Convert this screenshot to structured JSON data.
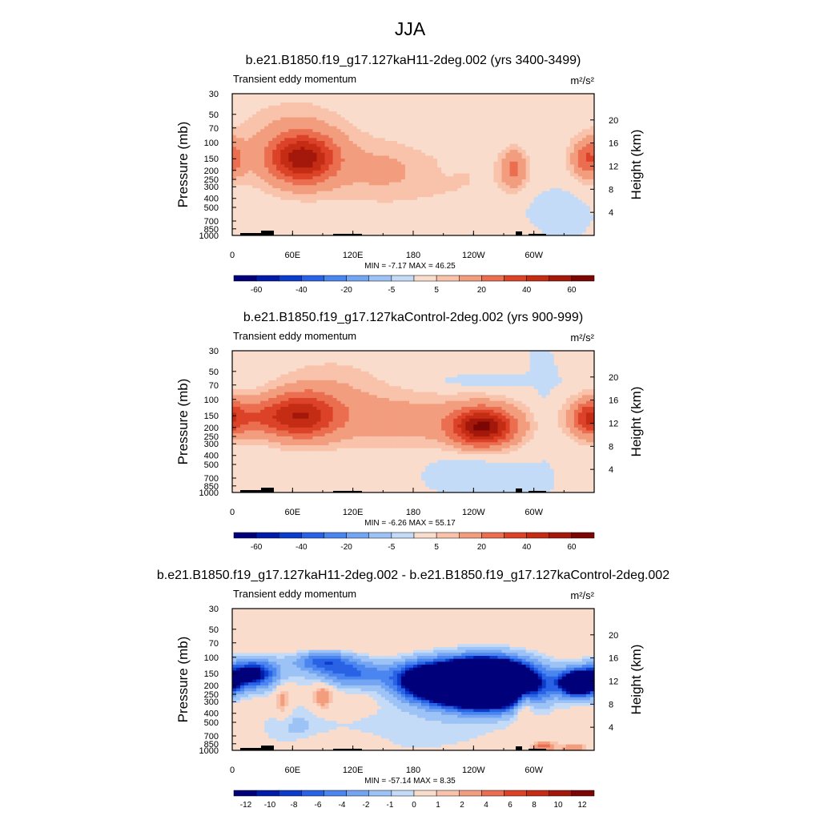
{
  "figure_title": "JJA",
  "chart_data": [
    {
      "type": "heatmap",
      "title": "b.e21.B1850.f19_g17.127kaH11-2deg.002 (yrs 3400-3499)",
      "subtitle": "Transient eddy momentum",
      "units": "m²/s²",
      "xlabel": "",
      "ylabel": "Pressure (mb)",
      "ylabel_right": "Height (km)",
      "x_ticks": [
        "0",
        "60E",
        "120E",
        "180",
        "120W",
        "60W"
      ],
      "y_ticks": [
        "30",
        "50",
        "70",
        "100",
        "150",
        "200",
        "250",
        "300",
        "400",
        "500",
        "700",
        "850",
        "1000"
      ],
      "y_ticks_right": [
        "20",
        "16",
        "12",
        "8",
        "4"
      ],
      "x_range": [
        0,
        360
      ],
      "y_range_mb": [
        1000,
        30
      ],
      "y_scale": "log",
      "min_max_text": "MIN = -7.17  MAX = 46.25",
      "min": -7.17,
      "max": 46.25,
      "colorbar_labels": [
        "-60",
        "-40",
        "-20",
        "-5",
        "5",
        "20",
        "40",
        "60"
      ],
      "colorbar_levels": [
        -70,
        -60,
        -50,
        -40,
        -30,
        -20,
        -10,
        -5,
        0,
        5,
        10,
        20,
        30,
        40,
        50,
        60,
        70
      ],
      "features": [
        {
          "lon": 70,
          "p": 150,
          "peak": 46,
          "lon_width": 32,
          "logp_width": 0.25
        },
        {
          "lon": 62,
          "p": 100,
          "peak": 12,
          "lon_width": 60,
          "logp_width": 0.45
        },
        {
          "lon": 280,
          "p": 190,
          "peak": 20,
          "lon_width": 12,
          "logp_width": 0.2
        },
        {
          "lon": 355,
          "p": 150,
          "peak": 28,
          "lon_width": 16,
          "logp_width": 0.2
        },
        {
          "lon": 180,
          "p": 250,
          "peak": 6,
          "lon_width": 130,
          "logp_width": 0.35
        },
        {
          "lon": 150,
          "p": 180,
          "peak": 6,
          "lon_width": 40,
          "logp_width": 0.3
        },
        {
          "lon": 215,
          "p": 170,
          "peak": -3,
          "lon_width": 8,
          "logp_width": 0.12
        },
        {
          "lon": 180,
          "p": 900,
          "peak": 3,
          "lon_width": 120,
          "logp_width": 0.15
        },
        {
          "lon": 320,
          "p": 500,
          "peak": -3,
          "lon_width": 30,
          "logp_width": 0.3
        }
      ]
    },
    {
      "type": "heatmap",
      "title": "b.e21.B1850.f19_g17.127kaControl-2deg.002 (yrs 900-999)",
      "subtitle": "Transient eddy momentum",
      "units": "m²/s²",
      "xlabel": "",
      "ylabel": "Pressure (mb)",
      "ylabel_right": "Height (km)",
      "x_ticks": [
        "0",
        "60E",
        "120E",
        "180",
        "120W",
        "60W"
      ],
      "y_ticks": [
        "30",
        "50",
        "70",
        "100",
        "150",
        "200",
        "250",
        "300",
        "400",
        "500",
        "700",
        "850",
        "1000"
      ],
      "y_ticks_right": [
        "20",
        "16",
        "12",
        "8",
        "4"
      ],
      "x_range": [
        0,
        360
      ],
      "y_range_mb": [
        1000,
        30
      ],
      "y_scale": "log",
      "min_max_text": "MIN = -6.26  MAX = 55.17",
      "min": -6.26,
      "max": 55.17,
      "colorbar_labels": [
        "-60",
        "-40",
        "-20",
        "-5",
        "5",
        "20",
        "40",
        "60"
      ],
      "colorbar_levels": [
        -70,
        -60,
        -50,
        -40,
        -30,
        -20,
        -10,
        -5,
        0,
        5,
        10,
        20,
        30,
        40,
        50,
        60,
        70
      ],
      "features": [
        {
          "lon": 70,
          "p": 150,
          "peak": 38,
          "lon_width": 34,
          "logp_width": 0.25
        },
        {
          "lon": 20,
          "p": 155,
          "peak": 22,
          "lon_width": 40,
          "logp_width": 0.2
        },
        {
          "lon": 250,
          "p": 200,
          "peak": 55,
          "lon_width": 30,
          "logp_width": 0.2
        },
        {
          "lon": 355,
          "p": 160,
          "peak": 28,
          "lon_width": 16,
          "logp_width": 0.2
        },
        {
          "lon": 180,
          "p": 170,
          "peak": 14,
          "lon_width": 110,
          "logp_width": 0.28
        },
        {
          "lon": 100,
          "p": 80,
          "peak": 8,
          "lon_width": 60,
          "logp_width": 0.4
        },
        {
          "lon": 310,
          "p": 150,
          "peak": -3,
          "lon_width": 14,
          "logp_width": 0.3
        },
        {
          "lon": 240,
          "p": 450,
          "peak": -3,
          "lon_width": 40,
          "logp_width": 0.15
        },
        {
          "lon": 250,
          "p": 65,
          "peak": -3,
          "lon_width": 50,
          "logp_width": 0.06
        }
      ]
    },
    {
      "type": "heatmap",
      "title": "b.e21.B1850.f19_g17.127kaH11-2deg.002 - b.e21.B1850.f19_g17.127kaControl-2deg.002",
      "subtitle": "Transient eddy momentum",
      "units": "m²/s²",
      "xlabel": "",
      "ylabel": "Pressure (mb)",
      "ylabel_right": "Height (km)",
      "x_ticks": [
        "0",
        "60E",
        "120E",
        "180",
        "120W",
        "60W"
      ],
      "y_ticks": [
        "30",
        "50",
        "70",
        "100",
        "150",
        "200",
        "250",
        "300",
        "400",
        "500",
        "700",
        "850",
        "1000"
      ],
      "y_ticks_right": [
        "20",
        "16",
        "12",
        "8",
        "4"
      ],
      "x_range": [
        0,
        360
      ],
      "y_range_mb": [
        1000,
        30
      ],
      "y_scale": "log",
      "min_max_text": "MIN = -57.14  MAX = 8.35",
      "min": -57.14,
      "max": 8.35,
      "colorbar_labels": [
        "-12",
        "-10",
        "-8",
        "-6",
        "-4",
        "-2",
        "-1",
        "0",
        "1",
        "2",
        "4",
        "6",
        "8",
        "10",
        "12"
      ],
      "colorbar_levels": [
        -14,
        -12,
        -11,
        -10,
        -9,
        -8,
        -6,
        -4,
        -2,
        -1,
        0,
        1,
        2,
        4,
        6,
        8,
        10,
        11,
        12,
        14
      ],
      "features": [
        {
          "lon": 250,
          "p": 190,
          "peak": -57,
          "lon_width": 45,
          "logp_width": 0.22
        },
        {
          "lon": 190,
          "p": 180,
          "peak": -14,
          "lon_width": 30,
          "logp_width": 0.2
        },
        {
          "lon": 20,
          "p": 150,
          "peak": -14,
          "lon_width": 25,
          "logp_width": 0.15
        },
        {
          "lon": 345,
          "p": 190,
          "peak": -22,
          "lon_width": 20,
          "logp_width": 0.14
        },
        {
          "lon": 120,
          "p": 150,
          "peak": -8,
          "lon_width": 40,
          "logp_width": 0.14
        },
        {
          "lon": 90,
          "p": 110,
          "peak": -8,
          "lon_width": 30,
          "logp_width": 0.1
        },
        {
          "lon": 290,
          "p": 260,
          "peak": 8,
          "lon_width": 10,
          "logp_width": 0.2
        },
        {
          "lon": 90,
          "p": 260,
          "peak": 4,
          "lon_width": 10,
          "logp_width": 0.15
        },
        {
          "lon": 50,
          "p": 300,
          "peak": 3,
          "lon_width": 8,
          "logp_width": 0.2
        },
        {
          "lon": 180,
          "p": 600,
          "peak": -1.5,
          "lon_width": 100,
          "logp_width": 0.3
        },
        {
          "lon": 60,
          "p": 550,
          "peak": -2,
          "lon_width": 30,
          "logp_width": 0.25
        },
        {
          "lon": 310,
          "p": 900,
          "peak": 5,
          "lon_width": 12,
          "logp_width": 0.05
        },
        {
          "lon": 340,
          "p": 950,
          "peak": 4,
          "lon_width": 12,
          "logp_width": 0.04
        },
        {
          "lon": 180,
          "p": 50,
          "peak": 0.8,
          "lon_width": 170,
          "logp_width": 0.3
        },
        {
          "lon": 100,
          "p": 800,
          "peak": 1.5,
          "lon_width": 40,
          "logp_width": 0.08
        }
      ]
    }
  ],
  "colors": {
    "background_field": "#d3e6fb",
    "palette": [
      "#00007a",
      "#001aaa",
      "#0b3ccc",
      "#2a62e6",
      "#4a85f0",
      "#73a5f3",
      "#9dc3f6",
      "#c4dbf8",
      "#fadccc",
      "#f8c3aa",
      "#f39d7f",
      "#ea6e4f",
      "#dc4228",
      "#c52c14",
      "#a3180a",
      "#7c0604"
    ]
  }
}
